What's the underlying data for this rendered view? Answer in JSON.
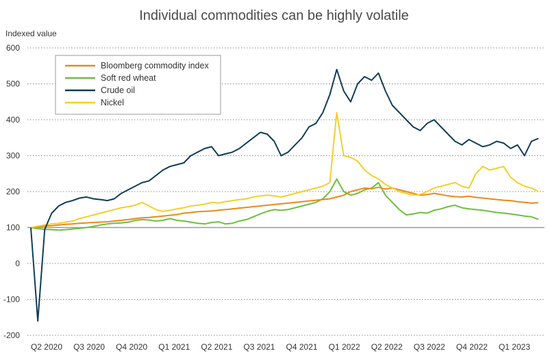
{
  "chart_data": {
    "type": "line",
    "title": "Individual commodities can be highly volatile",
    "ylabel": "Indexed value",
    "xlabel": "",
    "ylim": [
      -200,
      600
    ],
    "yticks": [
      600,
      500,
      400,
      300,
      200,
      100,
      0,
      -100,
      -200
    ],
    "baseline": 100,
    "grid": true,
    "legend_position": "top-left",
    "categories": [
      "Q2 2020",
      "Q3 2020",
      "Q4 2020",
      "Q1 2021",
      "Q2 2021",
      "Q3 2021",
      "Q4 2021",
      "Q1 2022",
      "Q2 2022",
      "Q3 2022",
      "Q4 2022",
      "Q1 2023"
    ],
    "x": [
      0,
      0.5,
      1,
      1.5,
      2,
      2.5,
      3,
      3.5,
      4,
      4.5,
      5,
      5.5,
      6,
      6.5,
      7,
      7.5,
      8,
      8.5,
      9,
      9.5,
      10,
      10.5,
      11,
      11.5,
      12,
      12.5,
      13,
      13.5,
      14,
      14.5,
      15,
      15.5,
      16,
      16.5,
      17,
      17.5,
      18,
      18.5,
      19,
      19.5,
      20,
      20.5,
      21,
      21.5,
      22,
      22.5,
      23,
      23.5,
      24,
      24.5,
      25,
      25.5,
      26,
      26.5,
      27,
      27.5,
      28,
      28.5,
      29,
      29.5,
      30,
      30.5,
      31,
      31.5,
      32,
      32.5,
      33,
      33.5,
      34,
      34.5,
      35,
      35.5,
      36,
      36.5
    ],
    "series": [
      {
        "name": "Bloomberg commodity index",
        "color": "#e8891c",
        "values": [
          100,
          102,
          104,
          105,
          107,
          109,
          110,
          112,
          113,
          114,
          115,
          116,
          118,
          120,
          122,
          125,
          127,
          128,
          130,
          132,
          134,
          136,
          140,
          142,
          144,
          145,
          146,
          148,
          150,
          152,
          154,
          156,
          158,
          160,
          162,
          164,
          166,
          168,
          170,
          172,
          174,
          176,
          178,
          180,
          185,
          190,
          200,
          205,
          210,
          208,
          212,
          207,
          210,
          205,
          200,
          195,
          190,
          192,
          195,
          192,
          188,
          186,
          185,
          187,
          184,
          182,
          180,
          178,
          176,
          175,
          172,
          170,
          168,
          169
        ]
      },
      {
        "name": "Soft red wheat",
        "color": "#6cbf3f",
        "values": [
          100,
          97,
          95,
          94,
          93,
          94,
          96,
          98,
          100,
          103,
          107,
          110,
          112,
          113,
          115,
          120,
          122,
          121,
          118,
          120,
          125,
          120,
          118,
          115,
          112,
          110,
          114,
          116,
          110,
          112,
          118,
          122,
          130,
          138,
          145,
          150,
          148,
          150,
          155,
          160,
          165,
          170,
          180,
          200,
          235,
          200,
          190,
          195,
          205,
          210,
          225,
          190,
          170,
          150,
          135,
          138,
          142,
          140,
          148,
          152,
          158,
          162,
          155,
          152,
          150,
          148,
          145,
          142,
          140,
          138,
          135,
          132,
          130,
          123
        ]
      },
      {
        "name": "Crude oil",
        "color": "#0f3d56",
        "values": [
          100,
          -160,
          95,
          140,
          160,
          170,
          175,
          182,
          185,
          180,
          178,
          175,
          180,
          195,
          205,
          215,
          225,
          230,
          245,
          260,
          270,
          275,
          280,
          300,
          310,
          320,
          325,
          300,
          305,
          310,
          320,
          335,
          350,
          365,
          360,
          340,
          300,
          310,
          330,
          350,
          380,
          390,
          420,
          470,
          540,
          480,
          450,
          500,
          520,
          510,
          530,
          480,
          440,
          420,
          400,
          380,
          370,
          390,
          400,
          380,
          360,
          340,
          330,
          345,
          335,
          325,
          330,
          340,
          335,
          320,
          330,
          300,
          340,
          348
        ]
      },
      {
        "name": "Nickel",
        "color": "#f4cf2a",
        "values": [
          100,
          104,
          107,
          110,
          112,
          115,
          118,
          125,
          130,
          135,
          140,
          145,
          150,
          155,
          158,
          162,
          170,
          160,
          150,
          145,
          148,
          152,
          155,
          160,
          162,
          165,
          170,
          168,
          172,
          175,
          178,
          180,
          185,
          188,
          190,
          188,
          185,
          190,
          195,
          200,
          205,
          210,
          215,
          225,
          420,
          300,
          295,
          285,
          260,
          245,
          235,
          220,
          210,
          200,
          195,
          190,
          192,
          200,
          210,
          215,
          220,
          225,
          215,
          210,
          250,
          270,
          260,
          265,
          270,
          240,
          225,
          215,
          210,
          200
        ]
      }
    ]
  }
}
